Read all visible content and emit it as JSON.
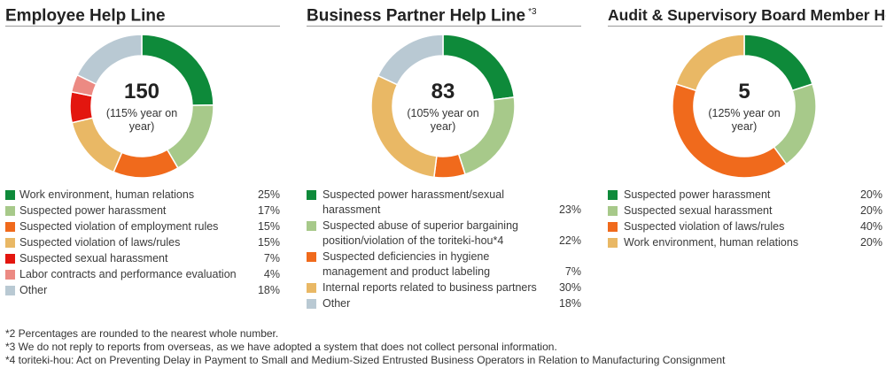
{
  "chart_data": [
    {
      "type": "pie",
      "title": "Employee Help Line",
      "title_note": "",
      "center_value": "150",
      "center_sub": "(115% year on year)",
      "categories": [
        "Work environment, human relations",
        "Suspected power harassment",
        "Suspected violation of employment rules",
        "Suspected violation of laws/rules",
        "Suspected sexual harassment",
        "Labor contracts and performance evaluation",
        "Other"
      ],
      "values": [
        25,
        17,
        15,
        15,
        7,
        4,
        18
      ],
      "value_labels": [
        "25%",
        "17%",
        "15%",
        "15%",
        "7%",
        "4%",
        "18%"
      ],
      "colors": [
        "#0e8a3a",
        "#a7c98a",
        "#f06a1c",
        "#e9b865",
        "#e3160f",
        "#ec8a83",
        "#b9c9d3"
      ]
    },
    {
      "type": "pie",
      "title": "Business Partner Help Line",
      "title_note": "*3",
      "center_value": "83",
      "center_sub": "(105% year on year)",
      "categories": [
        "Suspected power harassment/sexual harassment",
        "Suspected abuse of superior bargaining position/violation of the toriteki-hou*4",
        "Suspected deficiencies in hygiene management and product labeling",
        "Internal reports related to business partners",
        "Other"
      ],
      "values": [
        23,
        22,
        7,
        30,
        18
      ],
      "value_labels": [
        "23%",
        "22%",
        "7%",
        "30%",
        "18%"
      ],
      "colors": [
        "#0e8a3a",
        "#a7c98a",
        "#f06a1c",
        "#e9b865",
        "#b9c9d3"
      ]
    },
    {
      "type": "pie",
      "title": "Audit & Supervisory Board Member Hotline",
      "title_note": "",
      "center_value": "5",
      "center_sub": "(125% year on year)",
      "categories": [
        "Suspected power harassment",
        "Suspected sexual harassment",
        "Suspected violation of laws/rules",
        "Work environment, human relations"
      ],
      "values": [
        20,
        20,
        40,
        20
      ],
      "value_labels": [
        "20%",
        "20%",
        "40%",
        "20%"
      ],
      "colors": [
        "#0e8a3a",
        "#a7c98a",
        "#f06a1c",
        "#e9b865"
      ]
    }
  ],
  "footnotes": [
    "*2 Percentages are rounded to the nearest whole number.",
    "*3 We do not reply to reports from overseas, as we have adopted a system that does not collect personal information.",
    "*4 toriteki-hou: Act on Preventing Delay in Payment to Small and Medium-Sized Entrusted Business Operators in Relation to Manufacturing Consignment"
  ]
}
